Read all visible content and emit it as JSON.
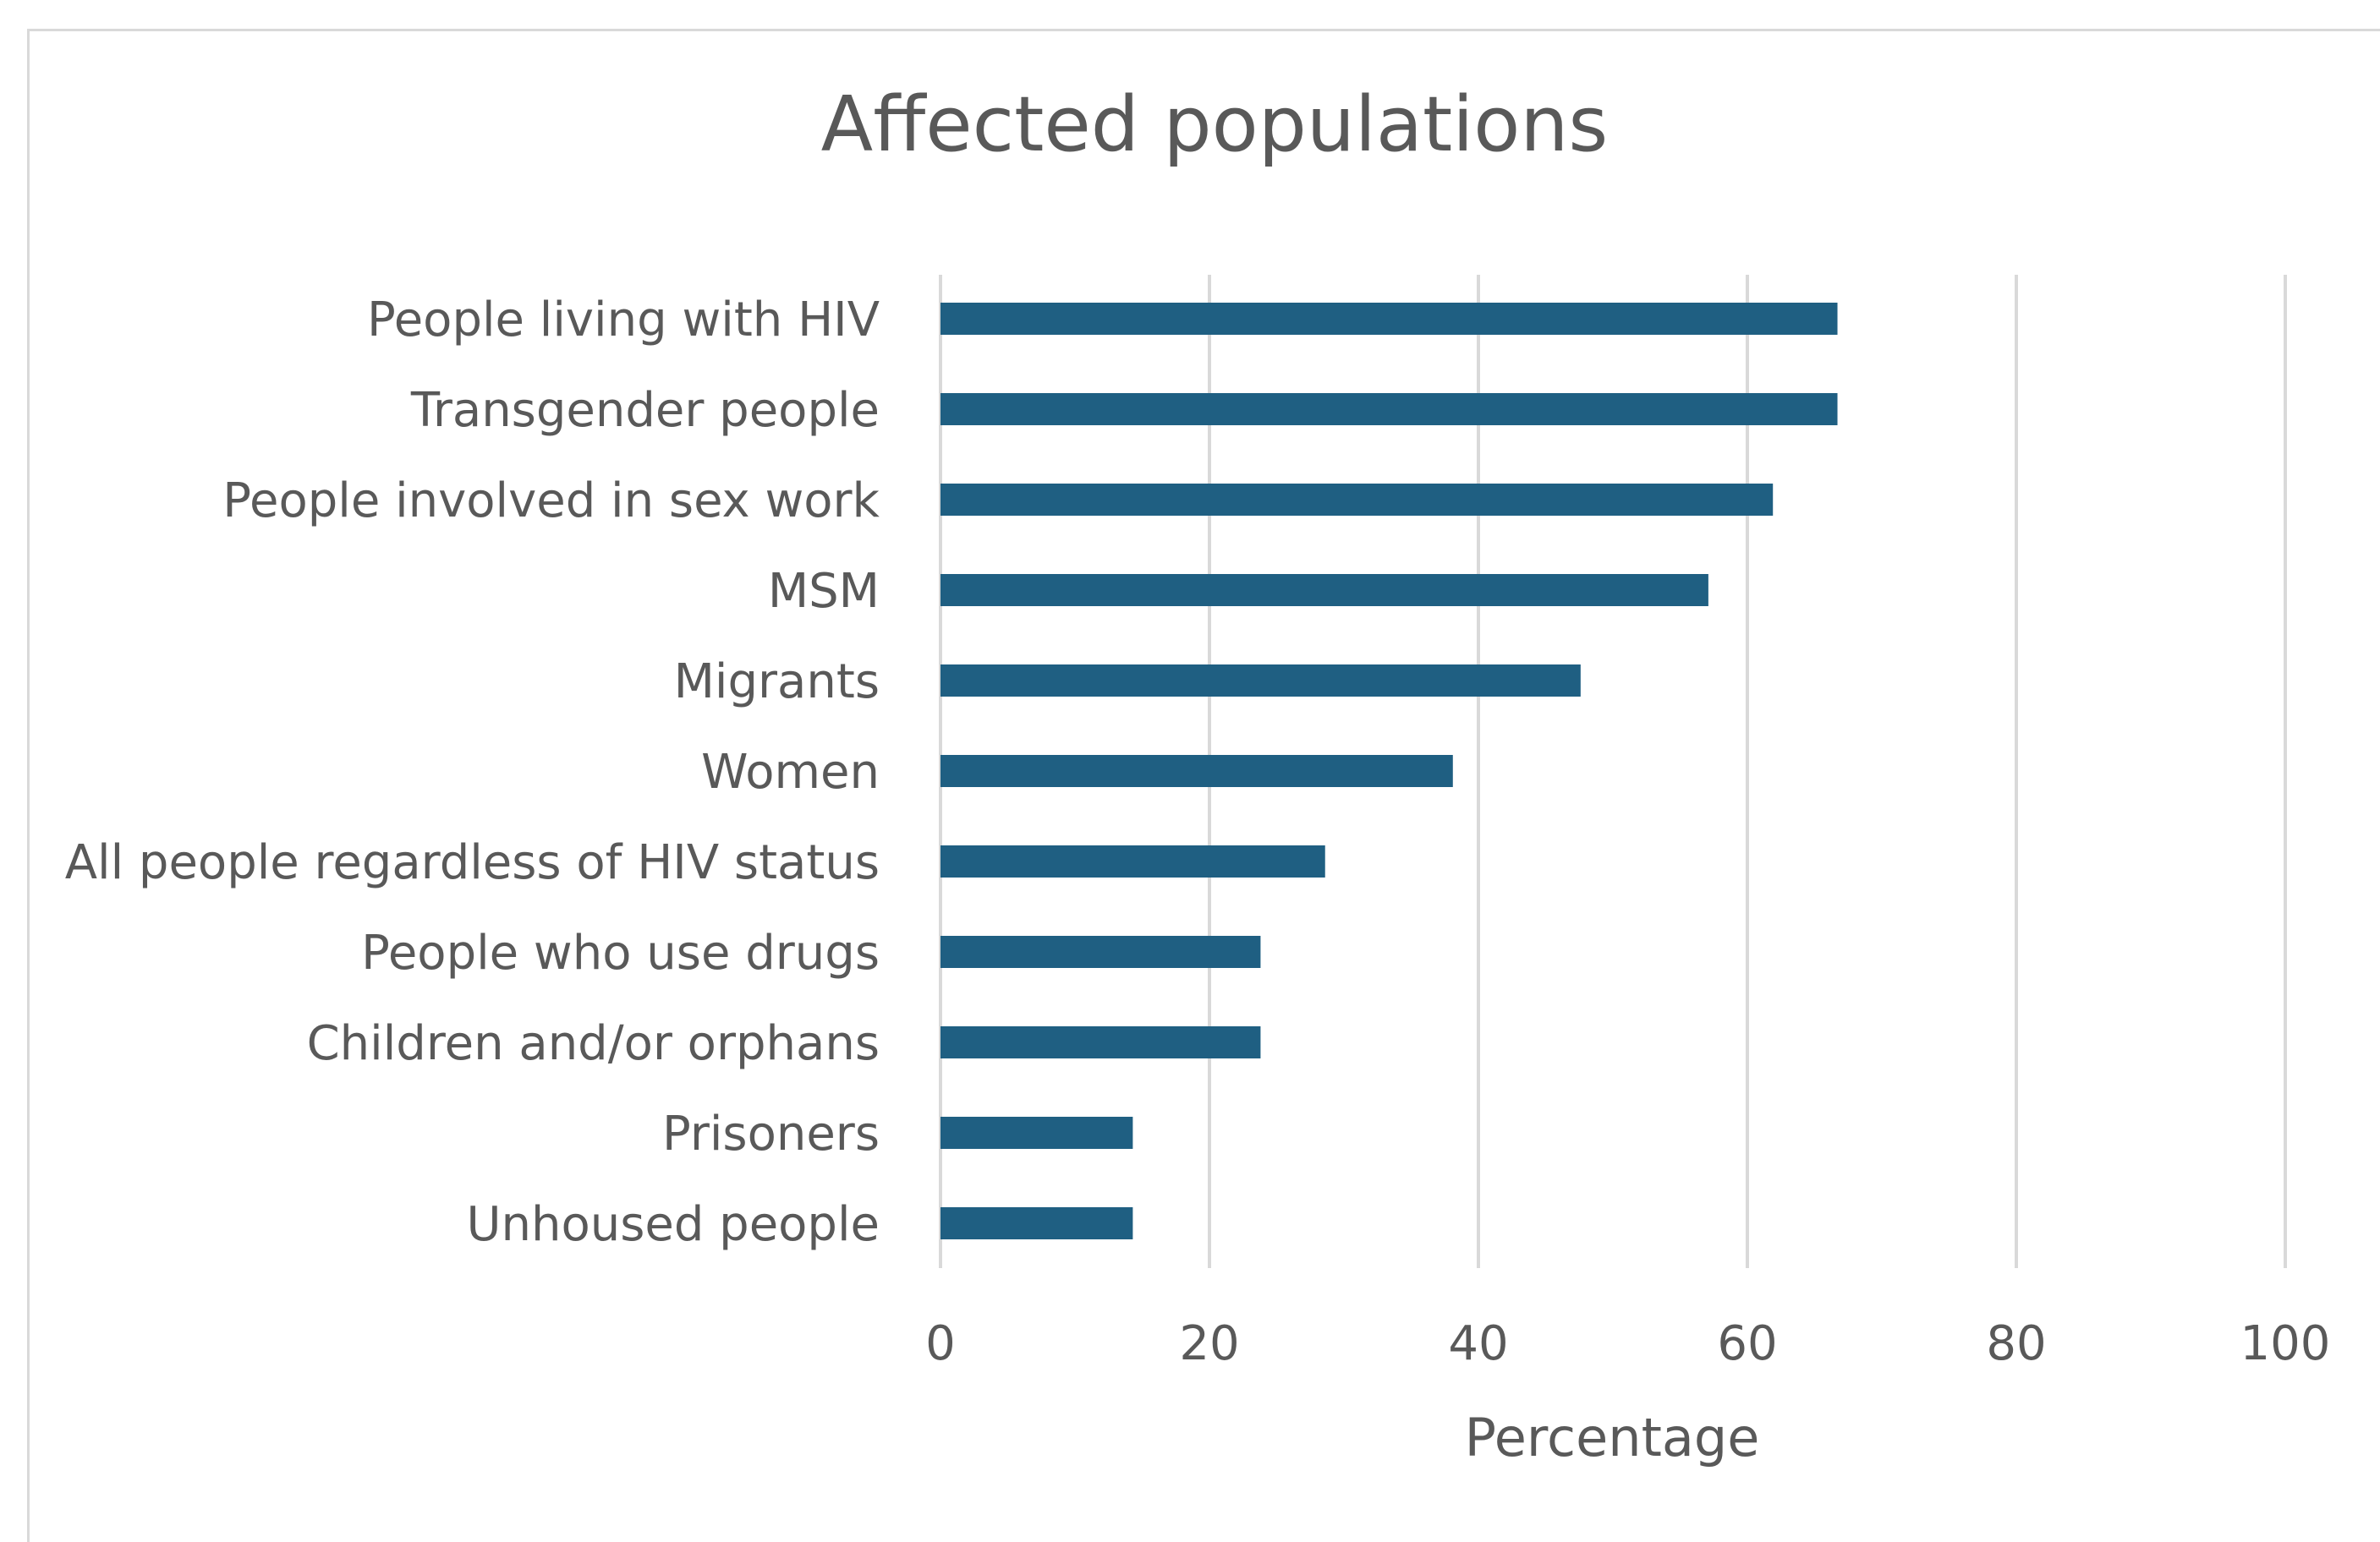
{
  "chart_data": {
    "type": "bar",
    "orientation": "horizontal",
    "title": "Affected populations",
    "xlabel": "Percentage",
    "ylabel": "",
    "xlim": [
      0,
      100
    ],
    "xticks": [
      0,
      20,
      40,
      60,
      80,
      100
    ],
    "grid": "vertical",
    "legend": "none",
    "bar_color": "#1f5f82",
    "categories": [
      "People living with HIV",
      "Transgender people",
      "People involved in sex work",
      "MSM",
      "Migrants",
      "Women",
      "All people regardless of HIV status",
      "People who use drugs",
      "Children and/or orphans",
      "Prisoners",
      "Unhoused people"
    ],
    "values": [
      66.7,
      66.7,
      61.9,
      57.1,
      47.6,
      38.1,
      28.6,
      23.8,
      23.8,
      14.3,
      14.3
    ]
  }
}
